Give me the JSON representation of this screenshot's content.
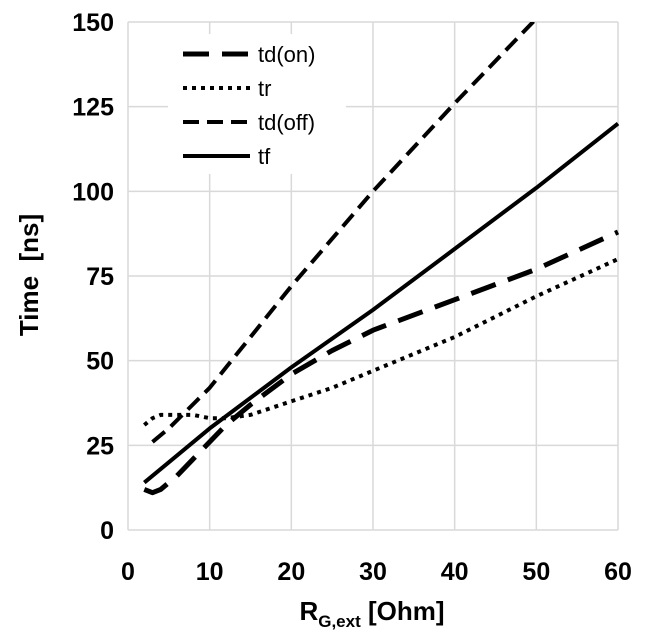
{
  "chart_data": {
    "type": "line",
    "title": "",
    "xlabel": {
      "main": "R",
      "sub": "G,ext",
      "unit": " [Ohm]"
    },
    "ylabel": "Time  [ns]",
    "xlim": [
      0,
      60
    ],
    "ylim": [
      0,
      150
    ],
    "xticks": [
      0,
      10,
      20,
      30,
      40,
      50,
      60
    ],
    "yticks": [
      0,
      25,
      50,
      75,
      100,
      125,
      150
    ],
    "grid": true,
    "legend_position": "top-left",
    "series": [
      {
        "name": "td(on)",
        "style": "long-dash",
        "color": "#000000",
        "x": [
          2,
          3,
          4,
          6,
          8,
          10,
          12,
          15,
          20,
          25,
          30,
          40,
          50,
          60
        ],
        "y": [
          12,
          11,
          12,
          16,
          21,
          26,
          31,
          37,
          46,
          53,
          59,
          68,
          77,
          88
        ]
      },
      {
        "name": "tr",
        "style": "dotted",
        "color": "#000000",
        "x": [
          2,
          3,
          4,
          6,
          8,
          10,
          12,
          15,
          20,
          25,
          30,
          40,
          50,
          60
        ],
        "y": [
          31,
          33,
          34,
          34,
          34,
          33,
          33,
          34,
          38,
          42,
          47,
          57,
          69,
          80
        ]
      },
      {
        "name": "td(off)",
        "style": "dashed",
        "color": "#000000",
        "x": [
          3,
          5,
          10,
          20,
          30,
          40,
          50
        ],
        "y": [
          26,
          30,
          42,
          72,
          100,
          126,
          151
        ]
      },
      {
        "name": "tf",
        "style": "solid",
        "color": "#000000",
        "x": [
          2,
          5,
          10,
          20,
          30,
          40,
          50,
          60
        ],
        "y": [
          14,
          20,
          30,
          48,
          65,
          83,
          101,
          120
        ]
      }
    ]
  }
}
